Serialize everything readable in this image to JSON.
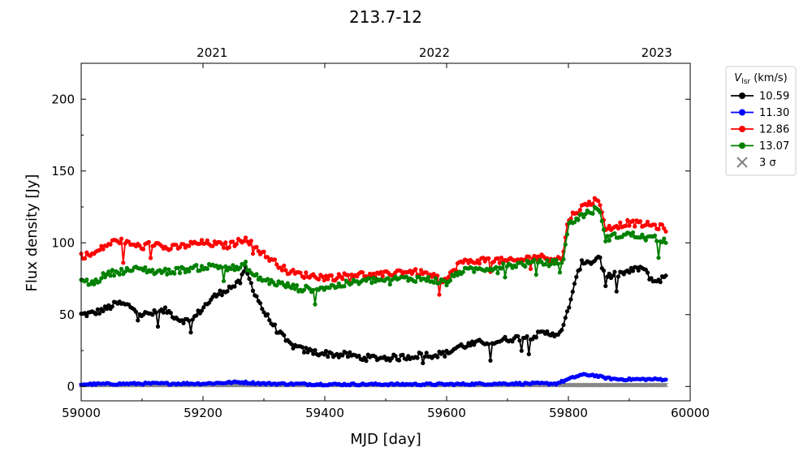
{
  "chart_data": {
    "type": "line",
    "title": "213.7-12",
    "xlabel": "MJD [day]",
    "ylabel": "Flux density [Jy]",
    "xlim": [
      59000,
      60000
    ],
    "ylim": [
      -10,
      225
    ],
    "xticks": [
      59000,
      59200,
      59400,
      59600,
      59800,
      60000
    ],
    "yticks": [
      0,
      50,
      100,
      150,
      200
    ],
    "top_axis": {
      "ticks": [
        {
          "mjd": 59215,
          "label": "2021"
        },
        {
          "mjd": 59580,
          "label": "2022"
        },
        {
          "mjd": 59945,
          "label": "2023"
        }
      ]
    },
    "legend": {
      "title_main": "V",
      "title_sub": "lsr",
      "title_unit": " (km/s)",
      "placement": "outside upper right"
    },
    "sigma_label": "3 σ",
    "sigma_color": "#808080",
    "sigma_level": 1,
    "series": [
      {
        "name": "10.59",
        "color": "#000000",
        "x": [
          59000,
          59020,
          59040,
          59060,
          59080,
          59100,
          59120,
          59140,
          59160,
          59180,
          59200,
          59220,
          59240,
          59260,
          59270,
          59280,
          59300,
          59320,
          59340,
          59360,
          59380,
          59400,
          59420,
          59440,
          59460,
          59480,
          59500,
          59520,
          59540,
          59560,
          59580,
          59600,
          59620,
          59640,
          59660,
          59680,
          59700,
          59720,
          59740,
          59760,
          59780,
          59790,
          59800,
          59810,
          59820,
          59830,
          59840,
          59850,
          59860,
          59880,
          59900,
          59920,
          59940,
          59960
        ],
        "y": [
          50,
          51,
          54,
          58,
          56,
          50,
          51,
          53,
          47,
          45,
          55,
          63,
          68,
          72,
          82,
          70,
          52,
          40,
          30,
          26,
          24,
          23,
          22,
          22,
          20,
          20,
          20,
          20,
          21,
          22,
          22,
          23,
          28,
          29,
          31,
          31,
          33,
          34,
          35,
          37,
          37,
          38,
          55,
          70,
          85,
          88,
          86,
          92,
          76,
          78,
          80,
          83,
          73,
          76
        ]
      },
      {
        "name": "11.30",
        "color": "#0000ff",
        "x": [
          59000,
          59100,
          59200,
          59260,
          59300,
          59400,
          59500,
          59600,
          59700,
          59780,
          59800,
          59820,
          59840,
          59860,
          59880,
          59900,
          59920,
          59940,
          59960
        ],
        "y": [
          1.5,
          2,
          2,
          3,
          2,
          1.5,
          1.5,
          1.5,
          2,
          2,
          5,
          8,
          8,
          6,
          5,
          5,
          5,
          5,
          5
        ]
      },
      {
        "name": "12.86",
        "color": "#ff0000",
        "x": [
          59000,
          59020,
          59040,
          59060,
          59080,
          59100,
          59120,
          59140,
          59160,
          59180,
          59200,
          59220,
          59240,
          59260,
          59270,
          59280,
          59300,
          59320,
          59340,
          59360,
          59380,
          59400,
          59420,
          59440,
          59460,
          59480,
          59500,
          59520,
          59540,
          59560,
          59580,
          59600,
          59620,
          59640,
          59660,
          59680,
          59700,
          59720,
          59740,
          59760,
          59780,
          59790,
          59800,
          59820,
          59840,
          59850,
          59860,
          59880,
          59900,
          59920,
          59940,
          59960
        ],
        "y": [
          91,
          92,
          98,
          102,
          99,
          97,
          100,
          96,
          97,
          99,
          100,
          99,
          98,
          101,
          104,
          99,
          92,
          86,
          80,
          78,
          77,
          76,
          76,
          78,
          78,
          77,
          78,
          80,
          80,
          79,
          76,
          74,
          86,
          87,
          88,
          88,
          87,
          88,
          90,
          90,
          89,
          89,
          117,
          124,
          129,
          131,
          110,
          112,
          114,
          113,
          112,
          110
        ]
      },
      {
        "name": "13.07",
        "color": "#008000",
        "x": [
          59000,
          59020,
          59040,
          59060,
          59080,
          59100,
          59120,
          59140,
          59160,
          59180,
          59200,
          59220,
          59240,
          59260,
          59270,
          59280,
          59300,
          59320,
          59340,
          59360,
          59380,
          59400,
          59420,
          59440,
          59460,
          59480,
          59500,
          59520,
          59540,
          59560,
          59580,
          59600,
          59620,
          59640,
          59660,
          59680,
          59700,
          59720,
          59740,
          59760,
          59780,
          59790,
          59800,
          59820,
          59840,
          59850,
          59860,
          59880,
          59900,
          59920,
          59940,
          59960
        ],
        "y": [
          73,
          72,
          78,
          80,
          81,
          82,
          80,
          80,
          81,
          82,
          83,
          84,
          83,
          82,
          85,
          78,
          74,
          72,
          70,
          68,
          68,
          69,
          70,
          72,
          73,
          74,
          74,
          75,
          75,
          75,
          74,
          72,
          80,
          81,
          82,
          83,
          84,
          85,
          86,
          86,
          86,
          85,
          112,
          119,
          122,
          125,
          103,
          105,
          106,
          104,
          103,
          102
        ]
      }
    ]
  }
}
